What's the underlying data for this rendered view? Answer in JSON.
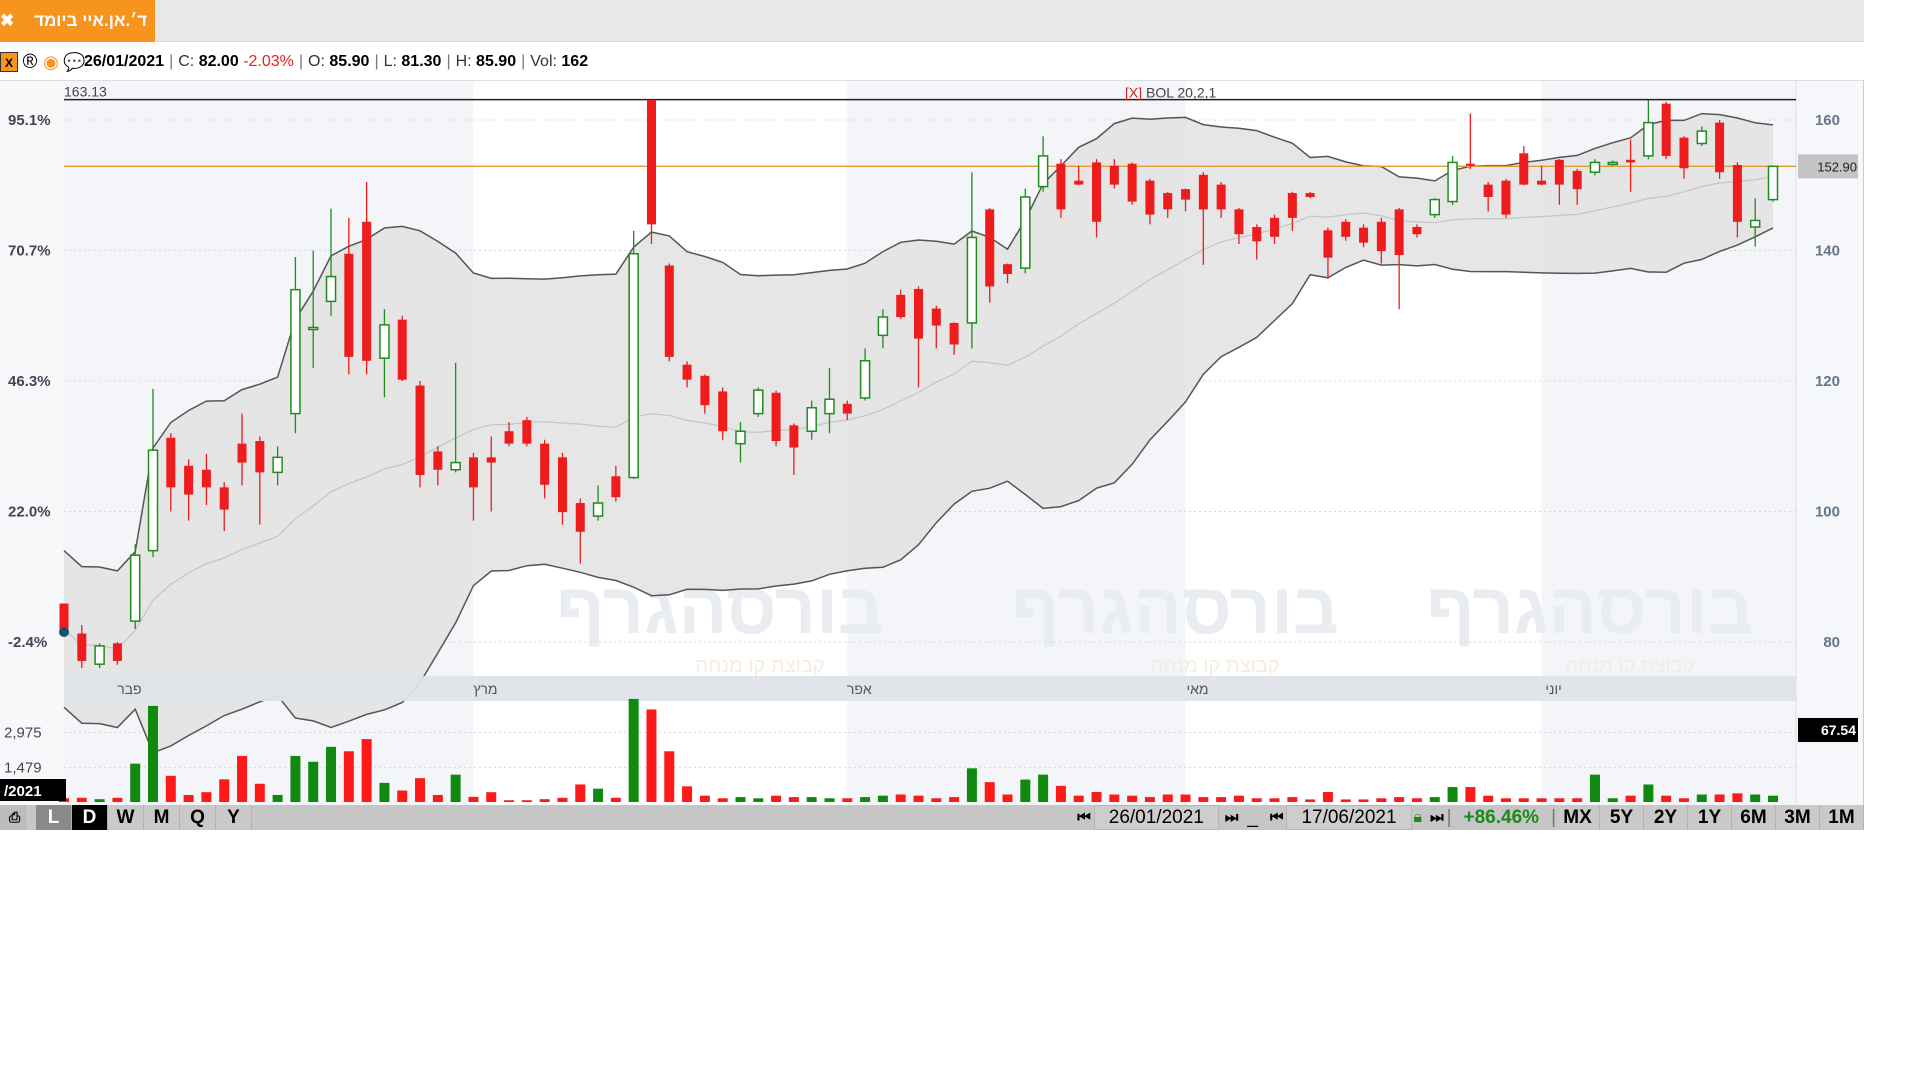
{
  "tab": {
    "title": "ד׳.אן.איי ביומד",
    "close_icon": "close-icon"
  },
  "info": {
    "date": "26/01/2021",
    "close_label": "C:",
    "close": "82.00",
    "change": "-2.03%",
    "open_label": "O:",
    "open": "85.90",
    "low_label": "L:",
    "low": "81.30",
    "high_label": "H:",
    "high": "85.90",
    "vol_label": "Vol:",
    "vol": "162",
    "icons": [
      "excel-icon",
      "registered-icon",
      "target-icon",
      "comment-icon"
    ]
  },
  "colors": {
    "up": "#1e8c1e",
    "down": "#ee1c1c",
    "accent": "#f7941d",
    "last_line": "#e39b3a",
    "band_fill": "#e2e2e2",
    "change_negative": "#ee1c1c",
    "change_positive": "#1a8a1a"
  },
  "chart_data": {
    "type": "candlestick",
    "indicator": "BOL 20,2,1",
    "indicator_close_label": "[X]",
    "top_value": "163.13",
    "last_price": "152.90",
    "volume_indicator_value": "67.54",
    "ylim": [
      63,
      165
    ],
    "y_ticks": [
      "160",
      "140",
      "120",
      "100",
      "80"
    ],
    "y_tick_values": [
      160,
      140,
      120,
      100,
      80
    ],
    "pct_ticks": [
      "95.1%",
      "70.7%",
      "46.3%",
      "22.0%",
      "-2.4%"
    ],
    "volume_ticks": [
      "2,975",
      "1,479"
    ],
    "volume_tick_values": [
      2975,
      1479
    ],
    "date_axis_label": "/2021",
    "months": [
      {
        "label": "פבר",
        "index": 3
      },
      {
        "label": "מרץ",
        "index": 23
      },
      {
        "label": "אפר",
        "index": 44
      },
      {
        "label": "מאי",
        "index": 63
      },
      {
        "label": "יוני",
        "index": 83
      }
    ],
    "watermark": "בורסהגרף",
    "watermark_sub": "קבוצת קו מנחה",
    "ohlc": [
      [
        85.9,
        85.9,
        81.3,
        82.0
      ],
      [
        81.3,
        82.6,
        76.0,
        77.1
      ],
      [
        76.6,
        79.8,
        76.0,
        79.4
      ],
      [
        79.8,
        80.0,
        76.5,
        77.1
      ],
      [
        83.2,
        95.0,
        82.0,
        93.3
      ],
      [
        94.0,
        118.8,
        93.0,
        109.4
      ],
      [
        111.3,
        112.0,
        100.0,
        103.7
      ],
      [
        107.0,
        108.0,
        98.6,
        102.6
      ],
      [
        106.4,
        108.8,
        101.0,
        103.7
      ],
      [
        103.7,
        104.5,
        97.0,
        100.3
      ],
      [
        110.4,
        115.0,
        104.0,
        107.5
      ],
      [
        110.8,
        111.5,
        98.0,
        106.0
      ],
      [
        106.0,
        110.0,
        104.0,
        108.3
      ],
      [
        115.0,
        139.0,
        112.0,
        134.0
      ],
      [
        128.0,
        140.0,
        122.0,
        128.2
      ],
      [
        132.2,
        146.4,
        130.0,
        136.0
      ],
      [
        139.5,
        145.0,
        121.0,
        123.7
      ],
      [
        144.4,
        150.5,
        121.0,
        123.1
      ],
      [
        123.5,
        131.0,
        117.5,
        128.6
      ],
      [
        129.4,
        130.0,
        120.0,
        120.2
      ],
      [
        119.3,
        120.0,
        103.7,
        105.6
      ],
      [
        109.2,
        110.0,
        104.0,
        106.4
      ],
      [
        106.4,
        122.8,
        106.0,
        107.5
      ],
      [
        108.3,
        109.0,
        98.6,
        103.7
      ],
      [
        108.3,
        111.5,
        100.0,
        107.5
      ],
      [
        112.3,
        113.7,
        110.0,
        110.4
      ],
      [
        114.0,
        114.5,
        110.0,
        110.4
      ],
      [
        110.4,
        111.0,
        102.0,
        104.1
      ],
      [
        108.3,
        109.0,
        98.0,
        99.9
      ],
      [
        101.3,
        102.0,
        92.0,
        96.9
      ],
      [
        99.3,
        104.0,
        98.6,
        101.3
      ],
      [
        105.4,
        107.0,
        101.5,
        102.2
      ],
      [
        105.2,
        143.0,
        105.0,
        139.5
      ],
      [
        163.1,
        163.13,
        141.0,
        144.0
      ],
      [
        137.7,
        138.0,
        123.0,
        123.7
      ],
      [
        122.5,
        123.0,
        119.0,
        120.2
      ],
      [
        120.8,
        121.0,
        115.0,
        116.3
      ],
      [
        118.4,
        119.0,
        111.0,
        112.3
      ],
      [
        110.4,
        113.7,
        107.5,
        112.3
      ],
      [
        115.0,
        119.0,
        114.5,
        118.6
      ],
      [
        118.2,
        118.5,
        110.0,
        110.8
      ],
      [
        113.2,
        113.5,
        105.6,
        109.8
      ],
      [
        112.3,
        117.0,
        111.0,
        115.9
      ],
      [
        115.0,
        122.0,
        112.0,
        117.2
      ],
      [
        116.5,
        117.0,
        114.0,
        115.0
      ],
      [
        117.4,
        125.0,
        117.0,
        123.1
      ],
      [
        127.0,
        131.0,
        125.0,
        129.8
      ],
      [
        133.2,
        134.0,
        129.5,
        129.8
      ],
      [
        134.1,
        134.5,
        119.0,
        126.5
      ],
      [
        131.1,
        131.5,
        125.0,
        128.5
      ],
      [
        128.9,
        129.0,
        124.0,
        125.6
      ],
      [
        128.9,
        152.0,
        125.0,
        142.0
      ],
      [
        146.3,
        146.5,
        132.0,
        134.5
      ],
      [
        137.9,
        138.0,
        135.0,
        136.4
      ],
      [
        137.3,
        149.5,
        136.5,
        148.2
      ],
      [
        149.8,
        157.5,
        149.0,
        154.5
      ],
      [
        153.3,
        154.0,
        145.0,
        146.3
      ],
      [
        150.7,
        153.0,
        150.0,
        150.1
      ],
      [
        153.5,
        154.0,
        142.0,
        144.4
      ],
      [
        153.0,
        154.0,
        149.5,
        150.1
      ],
      [
        153.3,
        153.5,
        147.0,
        147.5
      ],
      [
        150.7,
        151.0,
        144.0,
        145.5
      ],
      [
        148.8,
        149.0,
        145.0,
        146.3
      ],
      [
        149.4,
        149.5,
        146.0,
        147.8
      ],
      [
        151.6,
        152.0,
        137.8,
        146.3
      ],
      [
        150.1,
        150.5,
        145.0,
        146.3
      ],
      [
        146.3,
        146.5,
        141.0,
        142.5
      ],
      [
        143.6,
        144.0,
        138.6,
        141.4
      ],
      [
        145.0,
        145.5,
        141.0,
        142.1
      ],
      [
        148.8,
        149.0,
        143.0,
        145.0
      ],
      [
        148.8,
        149.0,
        148.0,
        148.2
      ],
      [
        143.1,
        143.5,
        135.7,
        138.9
      ],
      [
        144.4,
        144.8,
        141.5,
        142.1
      ],
      [
        143.5,
        144.0,
        140.5,
        141.2
      ],
      [
        144.4,
        145.0,
        138.0,
        139.9
      ],
      [
        146.3,
        146.5,
        131.0,
        139.3
      ],
      [
        143.6,
        144.0,
        142.0,
        142.5
      ],
      [
        145.5,
        148.0,
        145.0,
        147.8
      ],
      [
        147.5,
        154.5,
        147.0,
        153.5
      ],
      [
        153.3,
        161.0,
        152.5,
        153.0
      ],
      [
        150.1,
        150.5,
        146.0,
        148.2
      ],
      [
        150.7,
        151.0,
        145.0,
        145.5
      ],
      [
        154.9,
        156.0,
        150.0,
        150.1
      ],
      [
        150.7,
        153.0,
        150.0,
        150.1
      ],
      [
        153.9,
        154.0,
        147.0,
        150.1
      ],
      [
        152.2,
        152.5,
        147.0,
        149.4
      ],
      [
        152.0,
        154.0,
        151.5,
        153.5
      ],
      [
        153.2,
        153.8,
        153.0,
        153.5
      ],
      [
        153.9,
        157.0,
        149.0,
        153.5
      ],
      [
        154.5,
        163.0,
        154.0,
        159.6
      ],
      [
        162.5,
        162.8,
        154.0,
        154.5
      ],
      [
        157.3,
        157.5,
        151.0,
        152.6
      ],
      [
        156.4,
        159.0,
        156.0,
        158.3
      ],
      [
        159.6,
        160.0,
        151.0,
        152.0
      ],
      [
        153.1,
        153.5,
        142.0,
        144.4
      ],
      [
        143.6,
        148.0,
        140.6,
        144.6
      ],
      [
        147.8,
        152.9,
        147.5,
        152.9
      ]
    ],
    "volume": [
      162,
      180,
      120,
      180,
      1640,
      4110,
      1120,
      300,
      420,
      970,
      1970,
      780,
      300,
      1970,
      1720,
      2360,
      2170,
      2690,
      820,
      490,
      1020,
      300,
      1170,
      220,
      420,
      75,
      75,
      120,
      180,
      750,
      570,
      180,
      4410,
      3960,
      2170,
      670,
      270,
      160,
      210,
      160,
      270,
      210,
      210,
      160,
      160,
      210,
      270,
      320,
      270,
      160,
      210,
      1440,
      850,
      320,
      960,
      1170,
      690,
      270,
      430,
      320,
      270,
      210,
      320,
      320,
      210,
      210,
      270,
      160,
      160,
      210,
      110,
      430,
      110,
      110,
      160,
      210,
      160,
      210,
      640,
      640,
      270,
      160,
      160,
      160,
      160,
      160,
      1170,
      160,
      270,
      750,
      270,
      160,
      320,
      320,
      370,
      320,
      270
    ]
  },
  "toolbar": {
    "left_icon": "print-icon",
    "intervals": [
      "L",
      "D",
      "W",
      "M",
      "Q",
      "Y"
    ],
    "selected_interval": "D",
    "start_date": "26/01/2021",
    "end_date": "17/06/2021",
    "separator": "_",
    "lock_icon": "lock-icon",
    "change": "+86.46%",
    "ranges": [
      "MX",
      "5Y",
      "2Y",
      "1Y",
      "6M",
      "3M",
      "1M"
    ],
    "nav_first": "⏮",
    "nav_prev": "◀",
    "nav_next": "▶",
    "nav_last": "⏭"
  }
}
